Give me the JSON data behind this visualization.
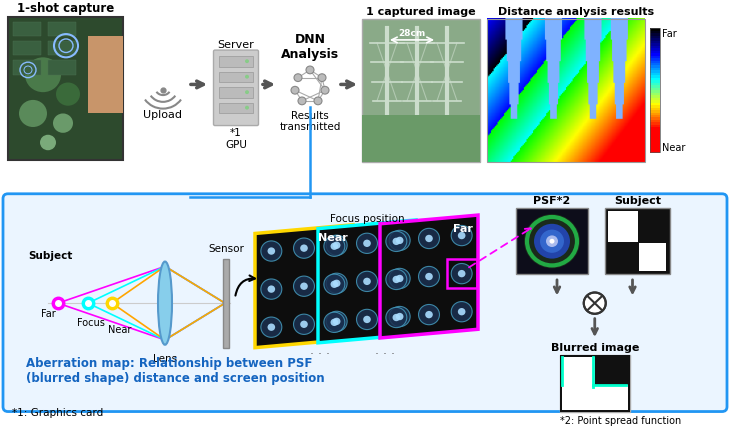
{
  "bg_color": "#ffffff",
  "top_section": {
    "label_1shot": "1-shot capture",
    "label_upload": "Upload",
    "label_server": "Server",
    "label_dnn": "DNN\nAnalysis",
    "label_gpu": "*1\nGPU",
    "label_results": "Results\ntransmitted",
    "label_captured": "1 captured image",
    "label_distance": "Distance analysis results",
    "label_28cm": "28cm",
    "label_far": "Far",
    "label_near": "Near"
  },
  "bottom_section": {
    "label_sensor": "Sensor",
    "label_subject": "Subject",
    "label_far": "Far",
    "label_focus": "Focus",
    "label_near": "Near",
    "label_lens": "Lens",
    "label_near_panel": "Near",
    "label_focus_pos": "Focus position",
    "label_far_panel": "Far",
    "label_psf": "PSF*2",
    "label_subject2": "Subject",
    "label_blurred": "Blurred image",
    "label_psf_note": "*2: Point spread function",
    "label_aberration": "Aberration map: Relationship between PSF\n(blurred shape) distance and screen position",
    "note": "*1: Graphics card"
  },
  "colors": {
    "blue_box": "#2196F3",
    "blue_box_fill": "#EBF5FF",
    "magenta": "#FF00FF",
    "cyan": "#00FFFF",
    "orange": "#FFA500",
    "yellow_border": "#FFD700",
    "arrow_dark": "#555555",
    "text_blue": "#1565C0",
    "lens_color": "#87CEEB",
    "panel_dark": "#0d0d0d"
  }
}
